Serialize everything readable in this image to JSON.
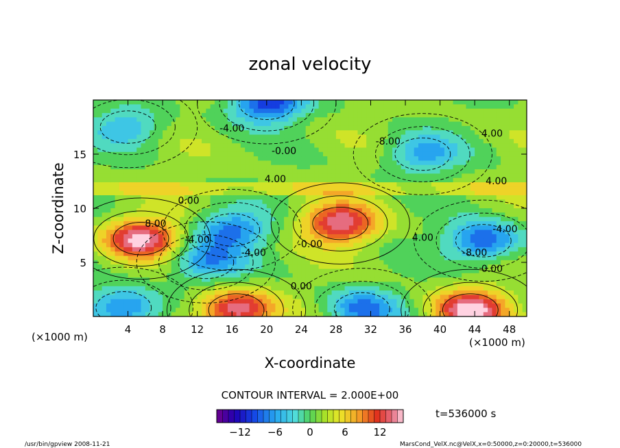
{
  "chart_data": {
    "type": "heatmap",
    "title": "zonal velocity",
    "xlabel": "X-coordinate",
    "ylabel": "Z-coordinate",
    "x_unit": "(×1000 m)",
    "y_unit": "(×1000 m)",
    "xlim": [
      0,
      50
    ],
    "ylim": [
      0,
      20
    ],
    "x_ticks": [
      4,
      8,
      12,
      16,
      20,
      24,
      28,
      32,
      36,
      40,
      44,
      48
    ],
    "y_ticks": [
      5,
      10,
      15
    ],
    "contour_interval_text": "CONTOUR INTERVAL = 2.000E+00",
    "time_text": "t=536000 s",
    "colorbar": {
      "range": [
        -16,
        16
      ],
      "ticks": [
        -12,
        -6,
        0,
        6,
        12
      ],
      "tick_labels": [
        "−12",
        "−6",
        "0",
        "6",
        "12"
      ]
    },
    "contour_labels": [
      {
        "text": "-4.00",
        "x": 16.0,
        "z": 17.1
      },
      {
        "text": "-0.00",
        "x": 22.0,
        "z": 15.0
      },
      {
        "text": "-8.00",
        "x": 34.0,
        "z": 15.9
      },
      {
        "text": "4.00",
        "x": 46.0,
        "z": 16.6
      },
      {
        "text": "4.00",
        "x": 21.0,
        "z": 12.4
      },
      {
        "text": "4.00",
        "x": 46.5,
        "z": 12.2
      },
      {
        "text": "0.00",
        "x": 11.0,
        "z": 10.4
      },
      {
        "text": "8.00",
        "x": 7.2,
        "z": 8.3
      },
      {
        "text": "-4.00",
        "x": 12.0,
        "z": 6.8
      },
      {
        "text": "-4.00",
        "x": 18.5,
        "z": 5.6
      },
      {
        "text": "-0.00",
        "x": 25.0,
        "z": 6.4
      },
      {
        "text": "4.00",
        "x": 38.0,
        "z": 7.0
      },
      {
        "text": "-8.00",
        "x": 44.0,
        "z": 5.6
      },
      {
        "text": "-4.00",
        "x": 47.5,
        "z": 7.8
      },
      {
        "text": "0.00",
        "x": 46.0,
        "z": 4.1
      },
      {
        "text": "0.00",
        "x": 24.0,
        "z": 2.5
      }
    ],
    "features": [
      {
        "kind": "max",
        "x": 5.5,
        "z": 7.2,
        "amp": 14
      },
      {
        "kind": "max",
        "x": 28.5,
        "z": 8.6,
        "amp": 13
      },
      {
        "kind": "max",
        "x": 16.5,
        "z": 0.6,
        "amp": 14
      },
      {
        "kind": "max",
        "x": 43.5,
        "z": 0.6,
        "amp": 14
      },
      {
        "kind": "min",
        "x": 16.0,
        "z": 8.0,
        "amp": -9
      },
      {
        "kind": "min",
        "x": 13.0,
        "z": 5.0,
        "amp": -8
      },
      {
        "kind": "min",
        "x": 45.0,
        "z": 7.0,
        "amp": -11
      },
      {
        "kind": "min",
        "x": 3.5,
        "z": 0.8,
        "amp": -10
      },
      {
        "kind": "min",
        "x": 31.0,
        "z": 0.7,
        "amp": -9
      },
      {
        "kind": "min",
        "x": 20.0,
        "z": 19.7,
        "amp": -12
      },
      {
        "kind": "min",
        "x": 38.0,
        "z": 15.0,
        "amp": -7
      },
      {
        "kind": "min",
        "x": 4.0,
        "z": 17.5,
        "amp": -6
      }
    ]
  },
  "footer": {
    "left": "/usr/bin/gpview   2008-11-21",
    "right": "MarsCond_VelX.nc@VelX,x=0:50000,z=0:20000,t=536000"
  }
}
